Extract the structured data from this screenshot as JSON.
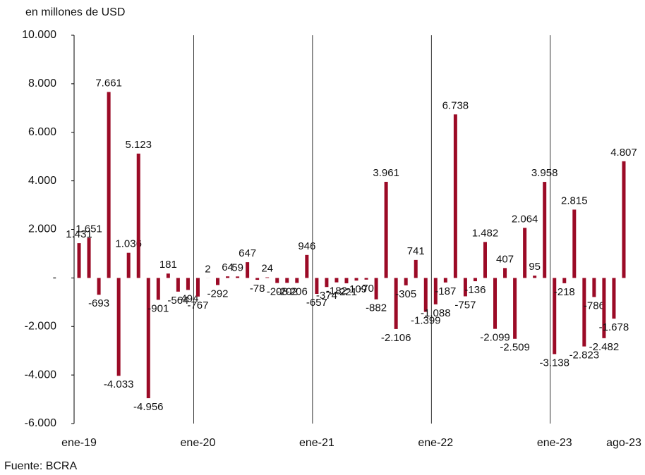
{
  "chart_data": {
    "type": "bar",
    "subtitle": "en millones de USD",
    "source": "Fuente: BCRA",
    "categories": [
      "ene-19",
      null,
      null,
      null,
      null,
      null,
      null,
      null,
      null,
      null,
      null,
      null,
      "ene-20",
      null,
      null,
      null,
      null,
      null,
      null,
      null,
      null,
      null,
      null,
      null,
      "ene-21",
      null,
      null,
      null,
      null,
      null,
      null,
      null,
      null,
      null,
      null,
      null,
      "ene-22",
      null,
      null,
      null,
      null,
      null,
      null,
      null,
      null,
      null,
      null,
      null,
      "ene-23",
      null,
      null,
      null,
      null,
      null,
      null,
      "ago-23"
    ],
    "values": [
      1431,
      1651,
      -693,
      7661,
      -4033,
      1036,
      5123,
      -4956,
      -901,
      181,
      -564,
      -494,
      -767,
      2,
      -292,
      64,
      59,
      647,
      -78,
      24,
      -208,
      -202,
      -206,
      946,
      -657,
      -374,
      -182,
      -221,
      -109,
      -70,
      -882,
      3961,
      -2106,
      -305,
      741,
      -1399,
      -1088,
      -187,
      6738,
      -757,
      -136,
      1482,
      -2099,
      407,
      -2509,
      2064,
      95,
      3958,
      -3138,
      -218,
      2815,
      -2823,
      -786,
      -2482,
      -1678,
      4807
    ],
    "value_labels": [
      "1.431",
      "1.651",
      "-693",
      "7.661",
      "-4.033",
      "1.036",
      "5.123",
      "-4.956",
      "-901",
      "181",
      "-564",
      "-494",
      "-767",
      "2",
      "-292",
      "64",
      "59",
      "647",
      "-78",
      "24",
      "-208",
      "-202",
      "-206",
      "946",
      "-657",
      "-374",
      "-182",
      "-221",
      "-109",
      "-70",
      "-882",
      "3.961",
      "-2.106",
      "-305",
      "741",
      "-1.399",
      "-1.088",
      "-187",
      "6.738",
      "-757",
      "-136",
      "1.482",
      "-2.099",
      "407",
      "-2.509",
      "2.064",
      "95",
      "3.958",
      "-3.138",
      "-218",
      "2.815",
      "-2.823",
      "-786",
      "-2.482",
      "-1.678",
      "4.807"
    ],
    "color": "#9b0a26",
    "ylim": [
      -6000,
      10000
    ],
    "yticks": [
      {
        "value": -6000,
        "label": "-6.000"
      },
      {
        "value": -4000,
        "label": "-4.000"
      },
      {
        "value": -2000,
        "label": "-2.000"
      },
      {
        "value": 0,
        "label": "-"
      },
      {
        "value": 2000,
        "label": "2.000"
      },
      {
        "value": 4000,
        "label": "4.000"
      },
      {
        "value": 6000,
        "label": "6.000"
      },
      {
        "value": 8000,
        "label": "8.000"
      },
      {
        "value": 10000,
        "label": "10.000"
      }
    ]
  }
}
